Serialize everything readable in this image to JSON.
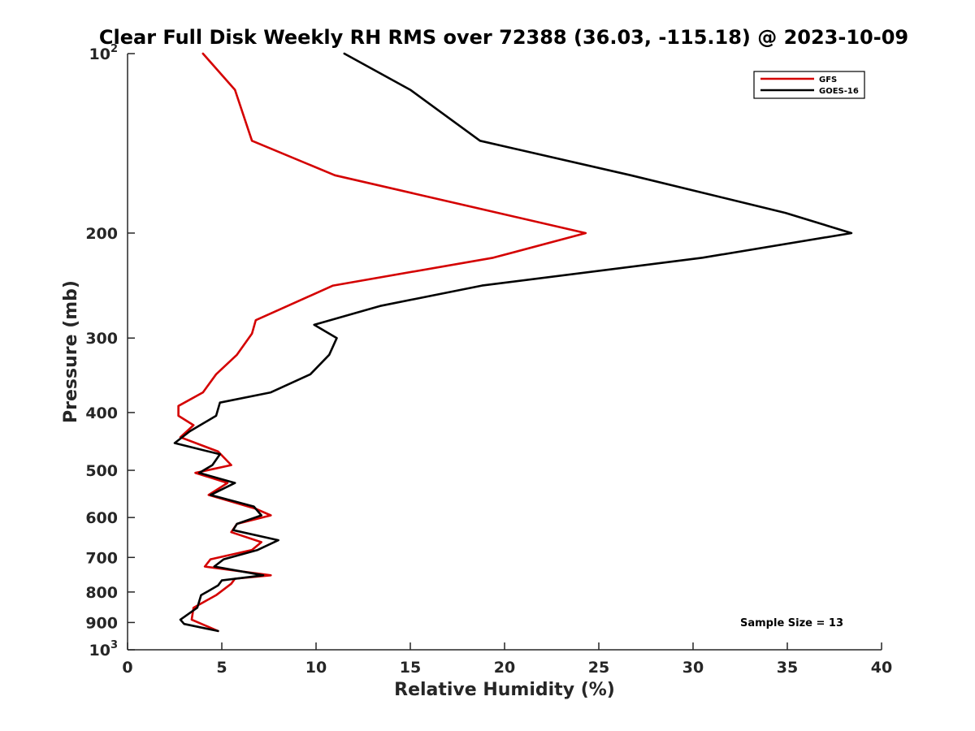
{
  "chart_data": {
    "type": "line",
    "title": "Clear Full Disk Weekly RH RMS over 72388 (36.03, -115.18) @ 2023-10-09",
    "xlabel": "Relative Humidity (%)",
    "ylabel": "Pressure (mb)",
    "xlim": [
      0,
      40
    ],
    "ylim": [
      100,
      1000
    ],
    "y_scale": "log",
    "y_reversed": true,
    "grid": false,
    "legend_position": "top-right",
    "x_ticks": [
      "0",
      "5",
      "10",
      "15",
      "20",
      "25",
      "30",
      "35",
      "40"
    ],
    "x_tick_values": [
      0,
      5,
      10,
      15,
      20,
      25,
      30,
      35,
      40
    ],
    "y_ticks": [
      {
        "value": 100,
        "base": "10",
        "exp": "2"
      },
      {
        "value": 200,
        "label": "200"
      },
      {
        "value": 300,
        "label": "300"
      },
      {
        "value": 400,
        "label": "400"
      },
      {
        "value": 500,
        "label": "500"
      },
      {
        "value": 600,
        "label": "600"
      },
      {
        "value": 700,
        "label": "700"
      },
      {
        "value": 800,
        "label": "800"
      },
      {
        "value": 900,
        "label": "900"
      },
      {
        "value": 1000,
        "base": "10",
        "exp": "3"
      }
    ],
    "series": [
      {
        "name": "GFS",
        "color": "#d40000",
        "x": [
          4.0,
          5.7,
          6.6,
          11.0,
          24.3,
          19.4,
          10.9,
          6.8,
          6.6,
          5.8,
          4.7,
          4.0,
          2.7,
          2.7,
          3.5,
          2.8,
          4.8,
          5.5,
          3.6,
          5.3,
          4.3,
          6.8,
          7.6,
          5.8,
          5.5,
          7.1,
          6.6,
          4.4,
          4.1,
          7.6,
          5.7,
          5.5,
          4.7,
          3.5,
          3.4,
          4.8
        ],
        "y": [
          100,
          115,
          140,
          160,
          200,
          220,
          245,
          280,
          295,
          320,
          345,
          370,
          390,
          405,
          420,
          440,
          465,
          490,
          505,
          525,
          550,
          580,
          595,
          615,
          635,
          660,
          680,
          705,
          725,
          750,
          760,
          775,
          810,
          850,
          890,
          930
        ]
      },
      {
        "name": "GOES-16",
        "color": "#000000",
        "x": [
          11.5,
          15.0,
          18.7,
          26.7,
          34.9,
          38.4,
          30.5,
          18.8,
          13.4,
          9.9,
          11.1,
          10.7,
          9.7,
          7.6,
          4.9,
          4.7,
          3.3,
          2.5,
          4.9,
          4.5,
          3.8,
          5.7,
          4.4,
          6.7,
          7.1,
          5.8,
          5.6,
          8.0,
          6.9,
          5.1,
          4.6,
          7.2,
          5.0,
          4.8,
          3.9,
          3.7,
          2.8,
          3.0,
          4.8
        ],
        "y": [
          100,
          115,
          140,
          160,
          185,
          200,
          220,
          245,
          265,
          285,
          300,
          320,
          345,
          370,
          385,
          405,
          430,
          450,
          470,
          490,
          505,
          525,
          550,
          575,
          595,
          615,
          630,
          655,
          680,
          705,
          725,
          750,
          765,
          780,
          810,
          850,
          890,
          905,
          930
        ]
      }
    ],
    "annotation": "Sample Size = 13"
  }
}
